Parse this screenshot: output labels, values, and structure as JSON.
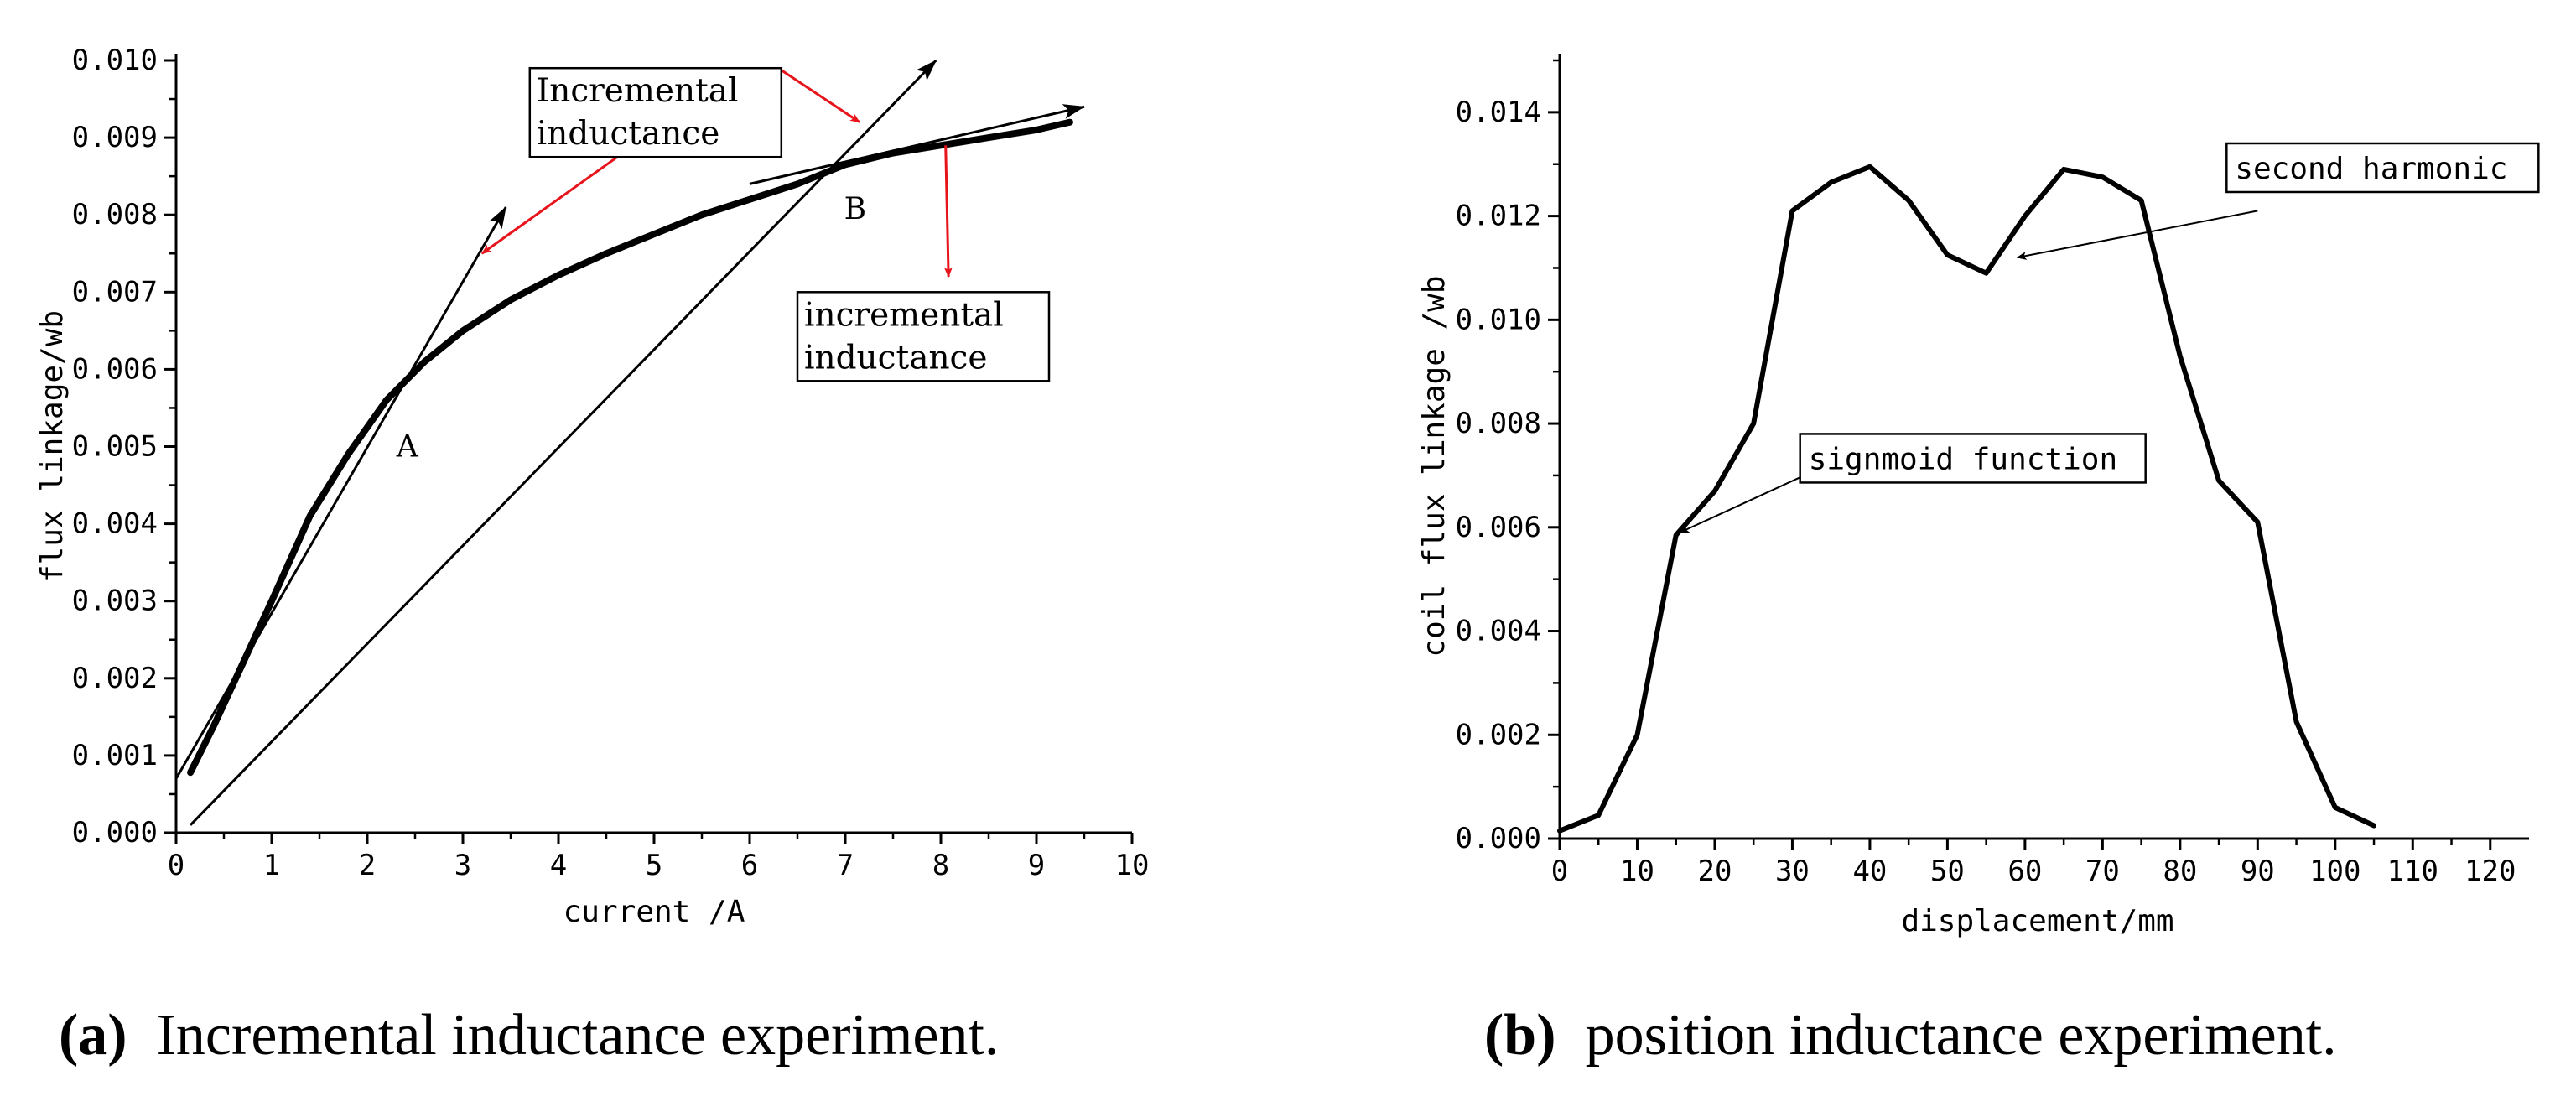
{
  "colors": {
    "axis": "#000000",
    "curve": "#000000",
    "annotation_red": "#e8141b"
  },
  "chart_data": [
    {
      "id": "a",
      "type": "line",
      "xlabel": "current /A",
      "ylabel": "flux linkage/wb",
      "xlim": [
        0,
        10
      ],
      "ylim": [
        0,
        0.01
      ],
      "x_ticks": [
        0,
        1,
        2,
        3,
        4,
        5,
        6,
        7,
        8,
        9,
        10
      ],
      "x_tick_labels": [
        "0",
        "1",
        "2",
        "3",
        "4",
        "5",
        "6",
        "7",
        "8",
        "9",
        "10"
      ],
      "y_ticks": [
        0,
        0.001,
        0.002,
        0.003,
        0.004,
        0.005,
        0.006,
        0.007,
        0.008,
        0.009,
        0.01
      ],
      "y_tick_labels": [
        "0.000",
        "0.001",
        "0.002",
        "0.003",
        "0.004",
        "0.005",
        "0.006",
        "0.007",
        "0.008",
        "0.009",
        "0.010"
      ],
      "series": [
        {
          "name": "flux linkage",
          "x": [
            0.15,
            0.4,
            0.7,
            1.0,
            1.4,
            1.8,
            2.2,
            2.6,
            3.0,
            3.5,
            4.0,
            4.5,
            5.0,
            5.5,
            6.0,
            6.5,
            7.0,
            7.5,
            8.0,
            8.5,
            9.0,
            9.35
          ],
          "y": [
            0.00078,
            0.0014,
            0.0022,
            0.003,
            0.0041,
            0.0049,
            0.0056,
            0.0061,
            0.0065,
            0.0069,
            0.00722,
            0.0075,
            0.00775,
            0.008,
            0.0082,
            0.0084,
            0.00865,
            0.0088,
            0.0089,
            0.009,
            0.0091,
            0.0092
          ]
        }
      ],
      "points": [
        {
          "label": "A",
          "x": 2.2,
          "y": 0.0055
        },
        {
          "label": "B",
          "x": 6.9,
          "y": 0.0086
        }
      ],
      "tangent_lines": [
        {
          "from": [
            0.0,
            0.0007
          ],
          "to": [
            3.45,
            0.0081
          ]
        },
        {
          "from": [
            0.15,
            0.0001
          ],
          "to": [
            7.95,
            0.01
          ]
        },
        {
          "from": [
            6.0,
            0.0084
          ],
          "to": [
            9.5,
            0.0094
          ]
        }
      ],
      "annotations": [
        {
          "lines": [
            "Incremental",
            "inductance"
          ],
          "box": [
            3.7,
            0.0099
          ],
          "arrows": [
            [
              [
                4.9,
                0.009
              ],
              [
                3.2,
                0.0075
              ]
            ],
            [
              [
                6.3,
                0.0099
              ],
              [
                7.15,
                0.0092
              ]
            ]
          ]
        },
        {
          "lines": [
            "incremental",
            "inductance"
          ],
          "box": [
            6.5,
            0.007
          ],
          "arrows": [
            [
              [
                8.05,
                0.0089
              ],
              [
                8.08,
                0.0072
              ]
            ]
          ]
        }
      ]
    },
    {
      "id": "b",
      "type": "line",
      "xlabel": "displacement/mm",
      "ylabel": "coil flux linkage /wb",
      "xlim": [
        0,
        125
      ],
      "ylim": [
        0,
        0.015
      ],
      "x_ticks": [
        0,
        10,
        20,
        30,
        40,
        50,
        60,
        70,
        80,
        90,
        100,
        110,
        120
      ],
      "x_tick_labels": [
        "0",
        "10",
        "20",
        "30",
        "40",
        "50",
        "60",
        "70",
        "80",
        "90",
        "100",
        "110",
        "120"
      ],
      "y_ticks": [
        0,
        0.002,
        0.004,
        0.006,
        0.008,
        0.01,
        0.012,
        0.014
      ],
      "y_tick_labels": [
        "0.000",
        "0.002",
        "0.004",
        "0.006",
        "0.008",
        "0.010",
        "0.012",
        "0.014"
      ],
      "series": [
        {
          "name": "coil flux linkage",
          "x": [
            0,
            5,
            10,
            15,
            20,
            25,
            30,
            35,
            40,
            45,
            50,
            55,
            60,
            65,
            70,
            75,
            80,
            85,
            90,
            95,
            100,
            105
          ],
          "y": [
            0.00015,
            0.00045,
            0.002,
            0.00585,
            0.0067,
            0.008,
            0.0121,
            0.01265,
            0.01295,
            0.0123,
            0.01125,
            0.0109,
            0.012,
            0.0129,
            0.01275,
            0.0123,
            0.0093,
            0.0069,
            0.0061,
            0.00225,
            0.0006,
            0.00025
          ]
        }
      ],
      "annotations": [
        {
          "text": "second harmonic",
          "box": [
            86,
            0.0134
          ],
          "arrow": [
            [
              90,
              0.0121
            ],
            [
              59,
              0.0112
            ]
          ]
        },
        {
          "text": "signmoid function",
          "box": [
            31,
            0.0078
          ],
          "arrow": [
            [
              33,
              0.0071
            ],
            [
              15.5,
              0.0059
            ]
          ]
        }
      ]
    }
  ],
  "captions": [
    {
      "label": "(a)",
      "text": "Incremental inductance experiment."
    },
    {
      "label": "(b)",
      "text": "position inductance experiment."
    }
  ]
}
